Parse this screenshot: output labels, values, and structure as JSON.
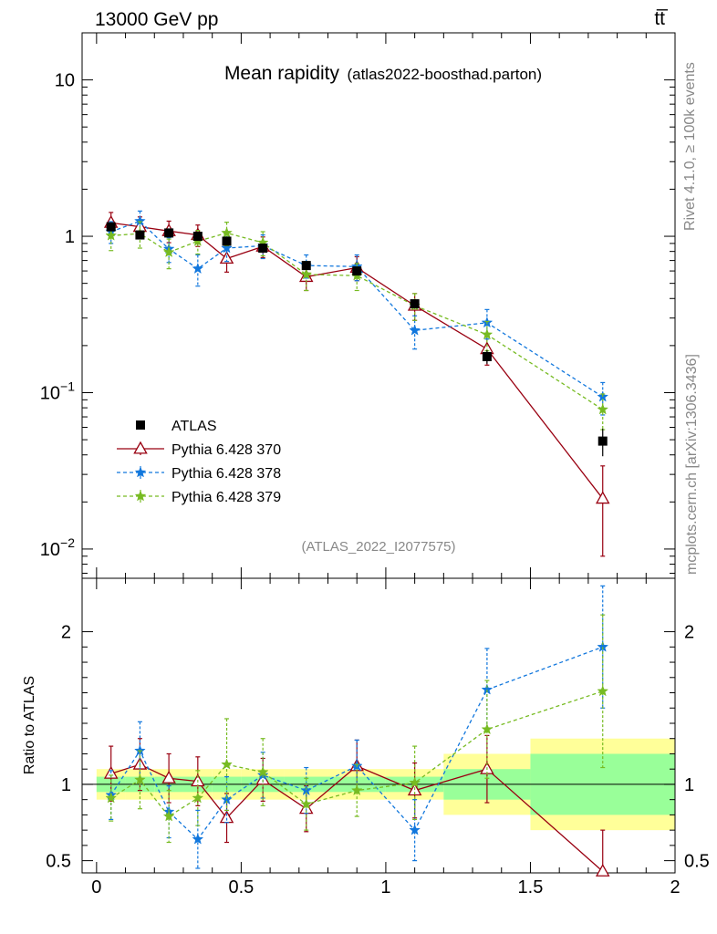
{
  "header": {
    "left": "13000 GeV pp",
    "right": "tt̅"
  },
  "plot": {
    "title_main": "Mean rapidity",
    "title_sub": "(atlas2022-boosthad.parton)",
    "watermark": "(ATLAS_2022_I2077575)",
    "side_label_top": "Rivet 4.1.0, ≥ 100k events",
    "side_label_bottom": "mcplots.cern.ch [arXiv:1306.3436]",
    "ratio_ylabel": "Ratio to ATLAS"
  },
  "chart_data": {
    "type": "scatter",
    "title": "Mean rapidity (atlas2022-boosthad.parton)",
    "xlim": [
      -0.05,
      2.0
    ],
    "main_yscale": "log",
    "main_ylim": [
      0.0065,
      20
    ],
    "ratio_ylim": [
      0.42,
      2.35
    ],
    "x_ticks": [
      {
        "value": 0,
        "label": "0"
      },
      {
        "value": 0.5,
        "label": "0.5"
      },
      {
        "value": 1,
        "label": "1"
      },
      {
        "value": 1.5,
        "label": "1.5"
      },
      {
        "value": 2,
        "label": "2"
      }
    ],
    "main_y_ticks": [
      {
        "value": 0.01,
        "base": "10",
        "exp": "−2"
      },
      {
        "value": 0.1,
        "base": "10",
        "exp": "−1"
      },
      {
        "value": 1,
        "base": "1",
        "exp": ""
      },
      {
        "value": 10,
        "base": "10",
        "exp": ""
      }
    ],
    "ratio_y_ticks": [
      {
        "value": 0.5,
        "label": "0.5"
      },
      {
        "value": 1,
        "label": "1"
      },
      {
        "value": 2,
        "label": "2"
      }
    ],
    "bins": [
      [
        0,
        0.1
      ],
      [
        0.1,
        0.2
      ],
      [
        0.2,
        0.3
      ],
      [
        0.3,
        0.4
      ],
      [
        0.4,
        0.5
      ],
      [
        0.5,
        0.65
      ],
      [
        0.65,
        0.8
      ],
      [
        0.8,
        1.0
      ],
      [
        1.0,
        1.2
      ],
      [
        1.2,
        1.5
      ],
      [
        1.5,
        2.0
      ]
    ],
    "x": [
      0.05,
      0.15,
      0.25,
      0.35,
      0.45,
      0.575,
      0.725,
      0.9,
      1.1,
      1.35,
      1.75
    ],
    "data": {
      "name": "ATLAS",
      "values": [
        1.15,
        1.02,
        1.05,
        1.0,
        0.93,
        0.84,
        0.65,
        0.6,
        0.37,
        0.17,
        0.049
      ],
      "band_stat": [
        0.05,
        0.05,
        0.05,
        0.05,
        0.05,
        0.05,
        0.05,
        0.05,
        0.05,
        0.1,
        0.2
      ],
      "band_total": [
        0.1,
        0.1,
        0.1,
        0.1,
        0.1,
        0.1,
        0.1,
        0.1,
        0.1,
        0.2,
        0.3
      ]
    },
    "series": [
      {
        "name": "Pythia 6.428 370",
        "color": "#990011",
        "marker": "triangle-open",
        "linestyle": "solid",
        "values": [
          1.22,
          1.15,
          1.08,
          1.02,
          0.72,
          0.86,
          0.55,
          0.63,
          0.36,
          0.19,
          0.021
        ],
        "err_lo": [
          0.2,
          0.18,
          0.17,
          0.16,
          0.13,
          0.13,
          0.1,
          0.11,
          0.07,
          0.04,
          0.012
        ],
        "err_hi": [
          0.2,
          0.18,
          0.17,
          0.16,
          0.13,
          0.13,
          0.1,
          0.11,
          0.07,
          0.04,
          0.013
        ],
        "ratio": [
          1.07,
          1.13,
          1.04,
          1.02,
          0.78,
          1.03,
          0.84,
          1.12,
          0.96,
          1.1,
          0.43
        ],
        "ratio_err": [
          0.18,
          0.17,
          0.16,
          0.16,
          0.16,
          0.14,
          0.15,
          0.17,
          0.18,
          0.22,
          0.27
        ]
      },
      {
        "name": "Pythia 6.428 378",
        "color": "#1177DD",
        "marker": "star",
        "linestyle": "dashed",
        "values": [
          1.07,
          1.25,
          0.83,
          0.62,
          0.84,
          0.87,
          0.65,
          0.64,
          0.25,
          0.28,
          0.094
        ],
        "err_lo": [
          0.17,
          0.2,
          0.15,
          0.14,
          0.15,
          0.15,
          0.11,
          0.12,
          0.06,
          0.06,
          0.022
        ],
        "err_hi": [
          0.17,
          0.2,
          0.15,
          0.14,
          0.15,
          0.15,
          0.11,
          0.12,
          0.06,
          0.06,
          0.022
        ],
        "ratio": [
          0.93,
          1.22,
          0.82,
          0.64,
          0.9,
          1.06,
          0.96,
          1.12,
          0.7,
          1.62,
          1.9
        ],
        "ratio_err": [
          0.16,
          0.19,
          0.17,
          0.19,
          0.15,
          0.15,
          0.15,
          0.17,
          0.2,
          0.27,
          0.4
        ]
      },
      {
        "name": "Pythia 6.428 379",
        "color": "#77BB22",
        "marker": "star",
        "linestyle": "dashed",
        "values": [
          1.01,
          1.04,
          0.79,
          0.93,
          1.05,
          0.91,
          0.57,
          0.56,
          0.36,
          0.235,
          0.078
        ],
        "err_lo": [
          0.2,
          0.2,
          0.17,
          0.16,
          0.18,
          0.16,
          0.12,
          0.11,
          0.07,
          0.05,
          0.02
        ],
        "err_hi": [
          0.2,
          0.2,
          0.17,
          0.16,
          0.18,
          0.16,
          0.12,
          0.11,
          0.07,
          0.05,
          0.02
        ],
        "ratio": [
          0.91,
          1.03,
          0.79,
          0.91,
          1.13,
          1.08,
          0.87,
          0.96,
          1.01,
          1.36,
          1.61
        ],
        "ratio_err": [
          0.15,
          0.19,
          0.17,
          0.18,
          0.3,
          0.22,
          0.17,
          0.17,
          0.24,
          0.32,
          0.5
        ]
      }
    ]
  }
}
